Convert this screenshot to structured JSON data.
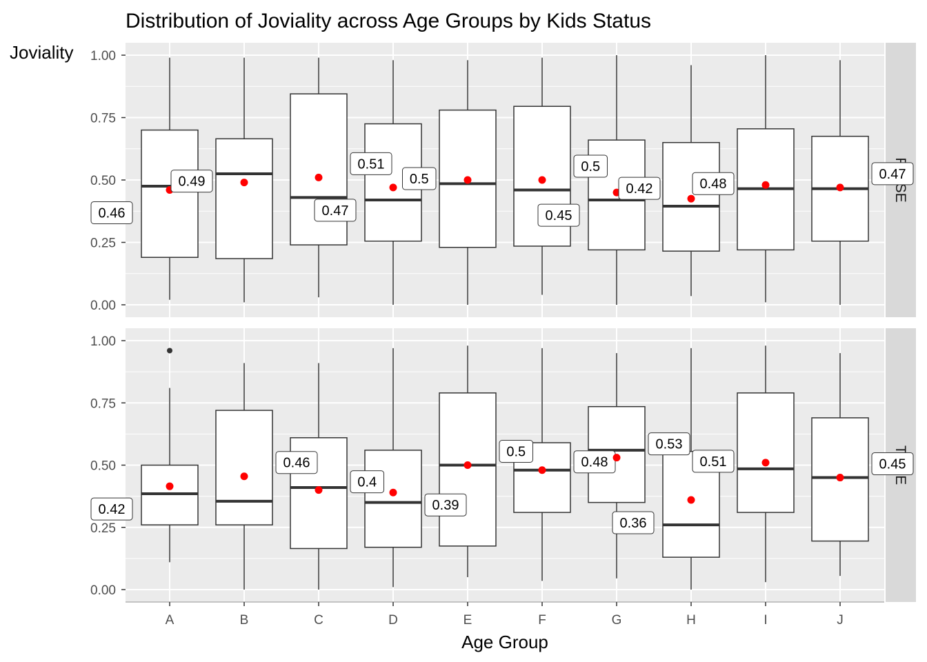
{
  "chart_data": {
    "type": "boxplot",
    "title": "Distribution of Joviality across Age Groups by Kids Status",
    "xlabel": "Age Group",
    "ylabel": "Joviality",
    "ylim": [
      0,
      1
    ],
    "y_ticks": [
      "0.00",
      "0.25",
      "0.50",
      "0.75",
      "1.00"
    ],
    "categories": [
      "A",
      "B",
      "C",
      "D",
      "E",
      "F",
      "G",
      "H",
      "I",
      "J"
    ],
    "colors": {
      "panel": "#ebebeb",
      "grid": "#ffffff",
      "strip": "#d9d9d9",
      "box_fill": "#ffffff",
      "box_line": "#333333",
      "mean_point": "#ff0000"
    },
    "facets": [
      {
        "label": "FALSE",
        "boxes": [
          {
            "cat": "A",
            "whisker_low": 0.02,
            "q1": 0.19,
            "median": 0.475,
            "q3": 0.7,
            "whisker_high": 0.99,
            "mean": 0.46,
            "label": "0.46",
            "label_side": "left-below"
          },
          {
            "cat": "B",
            "whisker_low": 0.01,
            "q1": 0.185,
            "median": 0.525,
            "q3": 0.665,
            "whisker_high": 0.99,
            "mean": 0.49,
            "label": "0.49",
            "label_side": "left"
          },
          {
            "cat": "C",
            "whisker_low": 0.03,
            "q1": 0.24,
            "median": 0.43,
            "q3": 0.845,
            "whisker_high": 0.99,
            "mean": 0.51,
            "label": "0.51",
            "label_side": "right-above"
          },
          {
            "cat": "D",
            "whisker_low": 0.0,
            "q1": 0.255,
            "median": 0.42,
            "q3": 0.725,
            "whisker_high": 0.98,
            "mean": 0.47,
            "label": "0.47",
            "label_side": "left-below"
          },
          {
            "cat": "E",
            "whisker_low": 0.0,
            "q1": 0.23,
            "median": 0.485,
            "q3": 0.78,
            "whisker_high": 0.98,
            "mean": 0.5,
            "label": "0.5",
            "label_side": "left"
          },
          {
            "cat": "F",
            "whisker_low": 0.04,
            "q1": 0.235,
            "median": 0.46,
            "q3": 0.795,
            "whisker_high": 0.99,
            "mean": 0.5,
            "label": "0.5",
            "label_side": "right-above"
          },
          {
            "cat": "G",
            "whisker_low": 0.0,
            "q1": 0.22,
            "median": 0.42,
            "q3": 0.66,
            "whisker_high": 1.0,
            "mean": 0.45,
            "label": "0.45",
            "label_side": "left-below"
          },
          {
            "cat": "H",
            "whisker_low": 0.035,
            "q1": 0.215,
            "median": 0.395,
            "q3": 0.65,
            "whisker_high": 0.96,
            "mean": 0.425,
            "label": "0.42",
            "label_side": "left-above"
          },
          {
            "cat": "I",
            "whisker_low": 0.01,
            "q1": 0.22,
            "median": 0.465,
            "q3": 0.705,
            "whisker_high": 1.0,
            "mean": 0.48,
            "label": "0.48",
            "label_side": "left"
          },
          {
            "cat": "J",
            "whisker_low": 0.0,
            "q1": 0.255,
            "median": 0.465,
            "q3": 0.675,
            "whisker_high": 0.98,
            "mean": 0.47,
            "label": "0.47",
            "label_side": "right-above"
          }
        ],
        "outliers": []
      },
      {
        "label": "TRUE",
        "boxes": [
          {
            "cat": "A",
            "whisker_low": 0.11,
            "q1": 0.26,
            "median": 0.385,
            "q3": 0.5,
            "whisker_high": 0.81,
            "mean": 0.415,
            "label": "0.42",
            "label_side": "left-below"
          },
          {
            "cat": "B",
            "whisker_low": 0.0,
            "q1": 0.26,
            "median": 0.355,
            "q3": 0.72,
            "whisker_high": 0.91,
            "mean": 0.455,
            "label": "0.46",
            "label_side": "right-above"
          },
          {
            "cat": "C",
            "whisker_low": 0.0,
            "q1": 0.165,
            "median": 0.41,
            "q3": 0.61,
            "whisker_high": 0.91,
            "mean": 0.4,
            "label": "0.4",
            "label_side": "right"
          },
          {
            "cat": "D",
            "whisker_low": 0.01,
            "q1": 0.17,
            "median": 0.35,
            "q3": 0.56,
            "whisker_high": 0.97,
            "mean": 0.39,
            "label": "0.39",
            "label_side": "right-below"
          },
          {
            "cat": "E",
            "whisker_low": 0.05,
            "q1": 0.175,
            "median": 0.5,
            "q3": 0.79,
            "whisker_high": 0.98,
            "mean": 0.5,
            "label": "0.5",
            "label_side": "right-above"
          },
          {
            "cat": "F",
            "whisker_low": 0.035,
            "q1": 0.31,
            "median": 0.48,
            "q3": 0.59,
            "whisker_high": 0.97,
            "mean": 0.48,
            "label": "0.48",
            "label_side": "right"
          },
          {
            "cat": "G",
            "whisker_low": 0.045,
            "q1": 0.35,
            "median": 0.56,
            "q3": 0.735,
            "whisker_high": 0.95,
            "mean": 0.53,
            "label": "0.53",
            "label_side": "right-above"
          },
          {
            "cat": "H",
            "whisker_low": 0.0,
            "q1": 0.13,
            "median": 0.26,
            "q3": 0.555,
            "whisker_high": 0.97,
            "mean": 0.36,
            "label": "0.36",
            "label_side": "left-below"
          },
          {
            "cat": "I",
            "whisker_low": 0.03,
            "q1": 0.31,
            "median": 0.485,
            "q3": 0.79,
            "whisker_high": 0.98,
            "mean": 0.51,
            "label": "0.51",
            "label_side": "left"
          },
          {
            "cat": "J",
            "whisker_low": 0.055,
            "q1": 0.195,
            "median": 0.45,
            "q3": 0.69,
            "whisker_high": 0.95,
            "mean": 0.45,
            "label": "0.45",
            "label_side": "right-above"
          }
        ],
        "outliers": [
          {
            "cat": "A",
            "y": 0.96
          }
        ]
      }
    ]
  }
}
